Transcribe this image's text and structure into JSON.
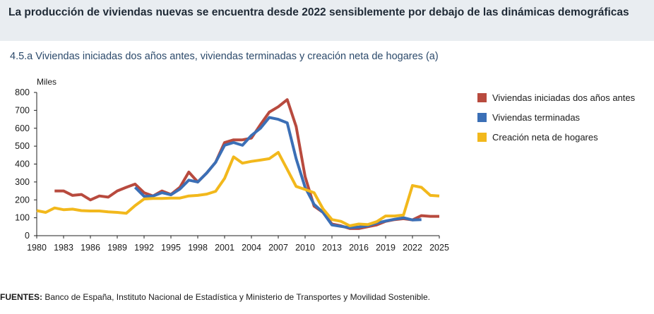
{
  "header": {
    "title": "La producción de viviendas nuevas se encuentra desde 2022 sensiblemente por debajo de las dinámicas demográficas"
  },
  "chart_data": {
    "type": "line",
    "subtitle": "4.5.a  Viviendas iniciadas dos años antes, viviendas terminadas y creación neta de hogares (a)",
    "ylabel": "Miles",
    "xlabel": "",
    "xlim": [
      1980,
      2025
    ],
    "ylim": [
      0,
      800
    ],
    "x_ticks": [
      1980,
      1983,
      1986,
      1989,
      1992,
      1995,
      1998,
      2001,
      2004,
      2007,
      2010,
      2013,
      2016,
      2019,
      2022,
      2025
    ],
    "y_ticks": [
      0,
      100,
      200,
      300,
      400,
      500,
      600,
      700,
      800
    ],
    "grid": false,
    "legend": "right",
    "series": [
      {
        "name": "Viviendas iniciadas dos años antes",
        "color": "#b84a3e",
        "x": [
          1982,
          1983,
          1984,
          1985,
          1986,
          1987,
          1988,
          1989,
          1990,
          1991,
          1992,
          1993,
          1994,
          1995,
          1996,
          1997,
          1998,
          1999,
          2000,
          2001,
          2002,
          2003,
          2004,
          2005,
          2006,
          2007,
          2008,
          2009,
          2010,
          2011,
          2012,
          2013,
          2014,
          2015,
          2016,
          2017,
          2018,
          2019,
          2020,
          2021,
          2022,
          2023,
          2024,
          2025
        ],
        "values": [
          250,
          250,
          225,
          230,
          200,
          222,
          215,
          250,
          270,
          288,
          240,
          222,
          250,
          230,
          270,
          355,
          300,
          350,
          410,
          520,
          535,
          535,
          545,
          620,
          690,
          720,
          760,
          610,
          330,
          165,
          130,
          65,
          55,
          40,
          40,
          50,
          60,
          80,
          90,
          95,
          88,
          112,
          108,
          108
        ]
      },
      {
        "name": "Viviendas terminadas",
        "color": "#3b6fb6",
        "x": [
          1991,
          1992,
          1993,
          1994,
          1995,
          1996,
          1997,
          1998,
          1999,
          2000,
          2001,
          2002,
          2003,
          2004,
          2005,
          2006,
          2007,
          2008,
          2009,
          2010,
          2011,
          2012,
          2013,
          2014,
          2015,
          2016,
          2017,
          2018,
          2019,
          2020,
          2021,
          2022,
          2023
        ],
        "values": [
          270,
          220,
          222,
          240,
          228,
          260,
          310,
          300,
          350,
          410,
          505,
          520,
          505,
          560,
          600,
          660,
          650,
          630,
          430,
          270,
          175,
          130,
          60,
          52,
          45,
          48,
          55,
          70,
          82,
          92,
          100,
          88,
          90
        ]
      },
      {
        "name": "Creación neta de hogares",
        "color": "#f2b81c",
        "x": [
          1980,
          1981,
          1982,
          1983,
          1984,
          1985,
          1986,
          1987,
          1988,
          1989,
          1990,
          1991,
          1992,
          1993,
          1994,
          1995,
          1996,
          1997,
          1998,
          1999,
          2000,
          2001,
          2002,
          2003,
          2004,
          2005,
          2006,
          2007,
          2008,
          2009,
          2010,
          2011,
          2012,
          2013,
          2014,
          2015,
          2016,
          2017,
          2018,
          2019,
          2020,
          2021,
          2022,
          2023,
          2024,
          2025
        ],
        "values": [
          140,
          130,
          155,
          145,
          148,
          140,
          138,
          138,
          133,
          130,
          125,
          168,
          205,
          208,
          208,
          210,
          210,
          222,
          225,
          232,
          248,
          320,
          440,
          405,
          415,
          422,
          430,
          465,
          370,
          275,
          258,
          240,
          150,
          90,
          80,
          55,
          65,
          62,
          78,
          110,
          110,
          115,
          280,
          270,
          225,
          222
        ]
      }
    ]
  },
  "footer": {
    "source_label": "FUENTES:",
    "source_text": " Banco de España, Instituto Nacional de Estadística y Ministerio de Transportes y Movilidad Sostenible."
  }
}
